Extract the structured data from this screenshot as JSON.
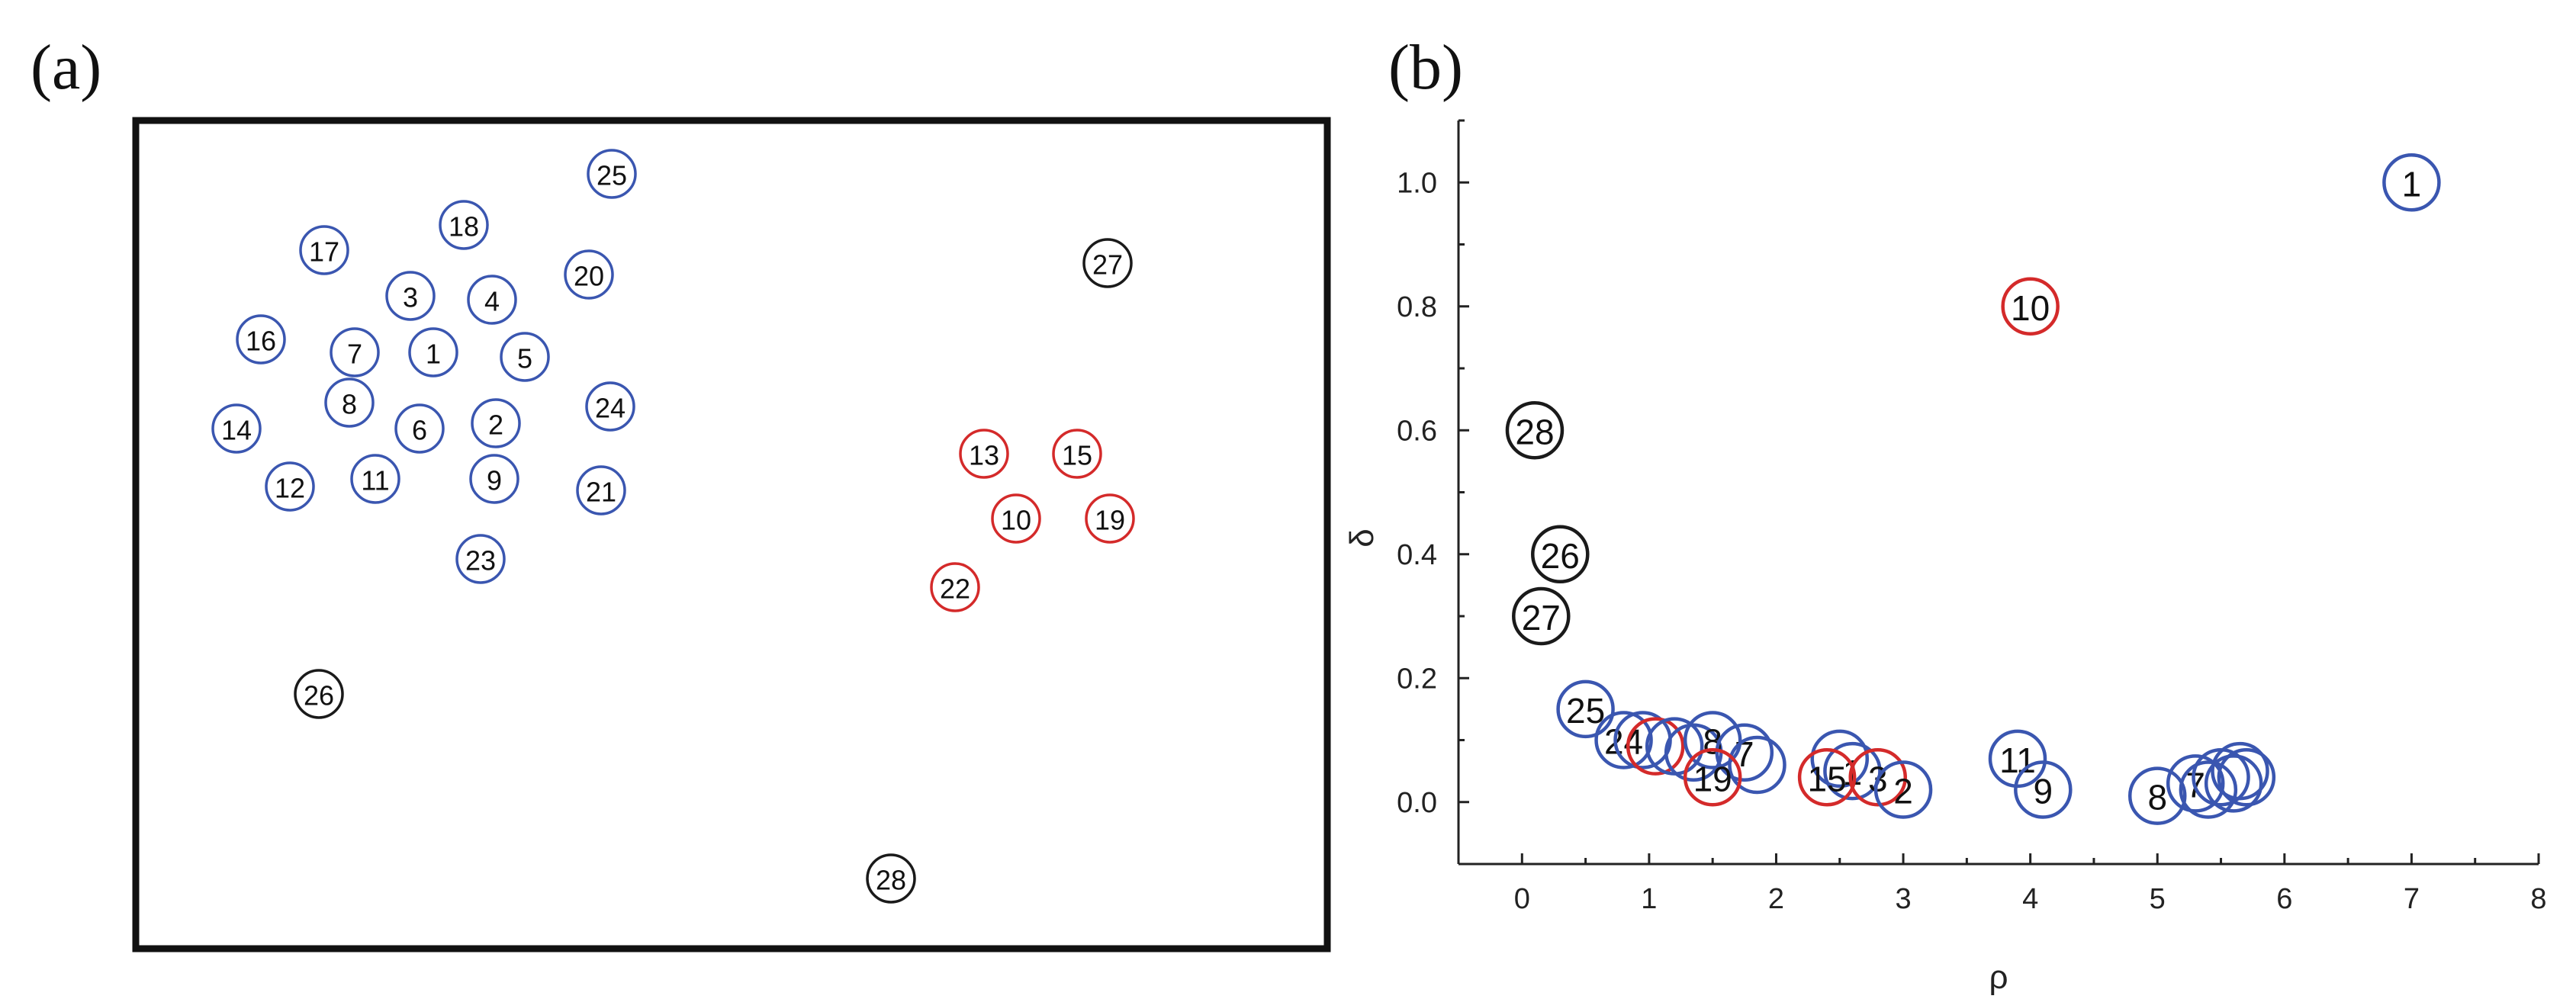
{
  "panels": {
    "a": "(a)",
    "b": "(b)"
  },
  "chart_data": [
    {
      "type": "scatter",
      "panel": "(a)",
      "title": "",
      "xlabel": "",
      "ylabel": "",
      "colors": {
        "blue": "#3a56b0",
        "red": "#d42a2a",
        "black": "#1a1a1a"
      },
      "points": [
        {
          "label": "25",
          "x": 0.0,
          "y": 0.0,
          "color": "blue"
        },
        {
          "label": "18",
          "x": 0.0,
          "y": 0.0,
          "color": "blue"
        },
        {
          "label": "17",
          "x": 0.0,
          "y": 0.0,
          "color": "blue"
        },
        {
          "label": "20",
          "x": 0.0,
          "y": 0.0,
          "color": "blue"
        },
        {
          "label": "3",
          "x": 0.0,
          "y": 0.0,
          "color": "blue"
        },
        {
          "label": "4",
          "x": 0.0,
          "y": 0.0,
          "color": "blue"
        },
        {
          "label": "16",
          "x": 0.0,
          "y": 0.0,
          "color": "blue"
        },
        {
          "label": "7",
          "x": 0.0,
          "y": 0.0,
          "color": "blue"
        },
        {
          "label": "1",
          "x": 0.0,
          "y": 0.0,
          "color": "blue"
        },
        {
          "label": "5",
          "x": 0.0,
          "y": 0.0,
          "color": "blue"
        },
        {
          "label": "8",
          "x": 0.0,
          "y": 0.0,
          "color": "blue"
        },
        {
          "label": "24",
          "x": 0.0,
          "y": 0.0,
          "color": "blue"
        },
        {
          "label": "14",
          "x": 0.0,
          "y": 0.0,
          "color": "blue"
        },
        {
          "label": "6",
          "x": 0.0,
          "y": 0.0,
          "color": "blue"
        },
        {
          "label": "2",
          "x": 0.0,
          "y": 0.0,
          "color": "blue"
        },
        {
          "label": "12",
          "x": 0.0,
          "y": 0.0,
          "color": "blue"
        },
        {
          "label": "11",
          "x": 0.0,
          "y": 0.0,
          "color": "blue"
        },
        {
          "label": "9",
          "x": 0.0,
          "y": 0.0,
          "color": "blue"
        },
        {
          "label": "21",
          "x": 0.0,
          "y": 0.0,
          "color": "blue"
        },
        {
          "label": "23",
          "x": 0.0,
          "y": 0.0,
          "color": "blue"
        },
        {
          "label": "27",
          "x": 0.0,
          "y": 0.0,
          "color": "black"
        },
        {
          "label": "13",
          "x": 0.0,
          "y": 0.0,
          "color": "red"
        },
        {
          "label": "15",
          "x": 0.0,
          "y": 0.0,
          "color": "red"
        },
        {
          "label": "10",
          "x": 0.0,
          "y": 0.0,
          "color": "red"
        },
        {
          "label": "19",
          "x": 0.0,
          "y": 0.0,
          "color": "red"
        },
        {
          "label": "22",
          "x": 0.0,
          "y": 0.0,
          "color": "red"
        },
        {
          "label": "26",
          "x": 0.0,
          "y": 0.0,
          "color": "black"
        },
        {
          "label": "28",
          "x": 0.0,
          "y": 0.0,
          "color": "black"
        }
      ]
    },
    {
      "type": "scatter",
      "panel": "(b)",
      "title": "",
      "xlabel": "ρ",
      "ylabel": "δ",
      "xlim": [
        -0.5,
        8
      ],
      "ylim": [
        -0.1,
        1.1
      ],
      "xticks": [
        0,
        1,
        2,
        3,
        4,
        5,
        6,
        7,
        8
      ],
      "yticks": [
        0.0,
        0.2,
        0.4,
        0.6,
        0.8,
        1.0
      ],
      "ytick_labels": [
        "0.0",
        "0.2",
        "0.4",
        "0.6",
        "0.8",
        "1.0"
      ],
      "colors": {
        "blue": "#3a56b0",
        "red": "#d42a2a",
        "black": "#1a1a1a"
      },
      "points": [
        {
          "label": "1",
          "x": 7.0,
          "y": 1.0,
          "color": "blue"
        },
        {
          "label": "10",
          "x": 4.0,
          "y": 0.8,
          "color": "red"
        },
        {
          "label": "28",
          "x": 0.1,
          "y": 0.6,
          "color": "black"
        },
        {
          "label": "26",
          "x": 0.3,
          "y": 0.4,
          "color": "black"
        },
        {
          "label": "27",
          "x": 0.15,
          "y": 0.3,
          "color": "black"
        },
        {
          "label": "25",
          "x": 0.5,
          "y": 0.15,
          "color": "blue"
        },
        {
          "label": "24",
          "x": 0.8,
          "y": 0.1,
          "color": "blue"
        },
        {
          "label": "",
          "x": 0.95,
          "y": 0.1,
          "color": "blue"
        },
        {
          "label": "",
          "x": 1.05,
          "y": 0.09,
          "color": "red"
        },
        {
          "label": "",
          "x": 1.2,
          "y": 0.09,
          "color": "blue"
        },
        {
          "label": "",
          "x": 1.35,
          "y": 0.08,
          "color": "blue"
        },
        {
          "label": "8",
          "x": 1.5,
          "y": 0.1,
          "color": "blue"
        },
        {
          "label": "7",
          "x": 1.75,
          "y": 0.08,
          "color": "blue"
        },
        {
          "label": "",
          "x": 1.85,
          "y": 0.06,
          "color": "blue"
        },
        {
          "label": "19",
          "x": 1.5,
          "y": 0.04,
          "color": "red"
        },
        {
          "label": "",
          "x": 2.5,
          "y": 0.07,
          "color": "blue"
        },
        {
          "label": "1",
          "x": 2.6,
          "y": 0.05,
          "color": "blue"
        },
        {
          "label": "15",
          "x": 2.4,
          "y": 0.04,
          "color": "red"
        },
        {
          "label": "3",
          "x": 2.8,
          "y": 0.04,
          "color": "red"
        },
        {
          "label": "2",
          "x": 3.0,
          "y": 0.02,
          "color": "blue"
        },
        {
          "label": "11",
          "x": 3.9,
          "y": 0.07,
          "color": "blue"
        },
        {
          "label": "9",
          "x": 4.1,
          "y": 0.02,
          "color": "blue"
        },
        {
          "label": "8",
          "x": 5.0,
          "y": 0.01,
          "color": "blue"
        },
        {
          "label": "7",
          "x": 5.3,
          "y": 0.03,
          "color": "blue"
        },
        {
          "label": "",
          "x": 5.4,
          "y": 0.02,
          "color": "blue"
        },
        {
          "label": "",
          "x": 5.5,
          "y": 0.04,
          "color": "blue"
        },
        {
          "label": "",
          "x": 5.6,
          "y": 0.03,
          "color": "blue"
        },
        {
          "label": "",
          "x": 5.65,
          "y": 0.05,
          "color": "blue"
        },
        {
          "label": "",
          "x": 5.7,
          "y": 0.04,
          "color": "blue"
        }
      ]
    }
  ]
}
